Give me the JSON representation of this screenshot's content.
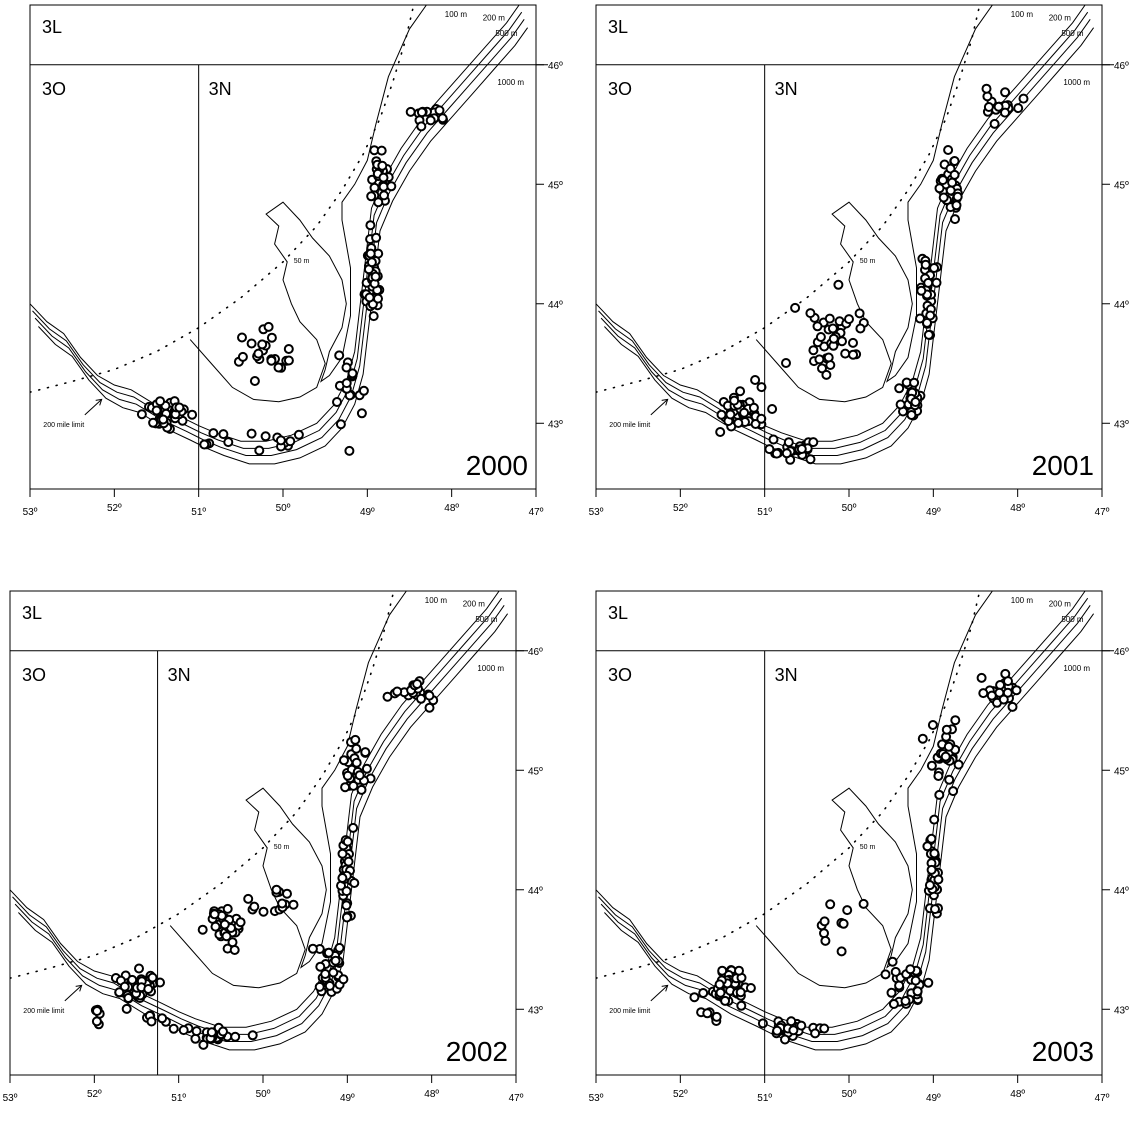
{
  "chart_data": [
    {
      "type": "scatter",
      "year_label": "2000",
      "divisions": {
        "top": "3L",
        "left": "3O",
        "right": "3N"
      },
      "depth_labels": [
        "100 m",
        "200 m",
        "500 m",
        "1000 m",
        "50 m"
      ],
      "limit_label": "200 mile limit",
      "x_ticks": [
        "53º",
        "52º",
        "51º",
        "50º",
        "49º",
        "48º",
        "47º"
      ],
      "y_ticks": [
        "46º",
        "45º",
        "44º",
        "43º"
      ],
      "xlim": [
        -53,
        -47
      ],
      "ylim": [
        42.45,
        46.5
      ],
      "dividers": {
        "lat": 46,
        "lon": -51
      },
      "clusters": [
        {
          "cx": -51.4,
          "cy": 43.08,
          "sx": 0.22,
          "sy": 0.12,
          "n": 40
        },
        {
          "cx": -50.8,
          "cy": 42.85,
          "sx": 0.2,
          "sy": 0.06,
          "n": 6
        },
        {
          "cx": -50.1,
          "cy": 42.85,
          "sx": 0.25,
          "sy": 0.08,
          "n": 10
        },
        {
          "cx": -50.2,
          "cy": 43.6,
          "sx": 0.35,
          "sy": 0.2,
          "n": 22
        },
        {
          "cx": -49.2,
          "cy": 43.3,
          "sx": 0.18,
          "sy": 0.3,
          "n": 18
        },
        {
          "cx": -48.95,
          "cy": 44.2,
          "sx": 0.08,
          "sy": 0.4,
          "n": 35
        },
        {
          "cx": -48.85,
          "cy": 45.05,
          "sx": 0.12,
          "sy": 0.2,
          "n": 25
        },
        {
          "cx": -48.3,
          "cy": 45.6,
          "sx": 0.2,
          "sy": 0.1,
          "n": 14
        }
      ]
    },
    {
      "type": "scatter",
      "year_label": "2001",
      "divisions": {
        "top": "3L",
        "left": "3O",
        "right": "3N"
      },
      "depth_labels": [
        "100 m",
        "200 m",
        "500 m",
        "1000 m",
        "50 m"
      ],
      "limit_label": "200 mile limit",
      "x_ticks": [
        "53º",
        "52º",
        "51º",
        "50º",
        "49º",
        "48º",
        "47º"
      ],
      "y_ticks": [
        "46º",
        "45º",
        "44º",
        "43º"
      ],
      "xlim": [
        -53,
        -47
      ],
      "ylim": [
        42.45,
        46.5
      ],
      "dividers": {
        "lat": 46,
        "lon": -51
      },
      "clusters": [
        {
          "cx": -51.3,
          "cy": 43.1,
          "sx": 0.25,
          "sy": 0.15,
          "n": 50
        },
        {
          "cx": -50.6,
          "cy": 42.78,
          "sx": 0.3,
          "sy": 0.07,
          "n": 22
        },
        {
          "cx": -50.2,
          "cy": 43.75,
          "sx": 0.4,
          "sy": 0.25,
          "n": 40
        },
        {
          "cx": -49.25,
          "cy": 43.2,
          "sx": 0.12,
          "sy": 0.2,
          "n": 28
        },
        {
          "cx": -49.05,
          "cy": 44.1,
          "sx": 0.08,
          "sy": 0.35,
          "n": 30
        },
        {
          "cx": -48.8,
          "cy": 45.0,
          "sx": 0.14,
          "sy": 0.25,
          "n": 30
        },
        {
          "cx": -48.2,
          "cy": 45.65,
          "sx": 0.2,
          "sy": 0.1,
          "n": 22
        }
      ]
    },
    {
      "type": "scatter",
      "year_label": "2002",
      "divisions": {
        "top": "3L",
        "left": "3O",
        "right": "3N"
      },
      "depth_labels": [
        "100 m",
        "200 m",
        "500 m",
        "1000 m",
        "50 m"
      ],
      "limit_label": "200 mile limit",
      "x_ticks": [
        "53º",
        "52º",
        "51º",
        "50º",
        "49º",
        "48º",
        "47º"
      ],
      "y_ticks": [
        "46º",
        "45º",
        "44º",
        "43º"
      ],
      "xlim": [
        -53,
        -47
      ],
      "ylim": [
        42.45,
        46.5
      ],
      "dividers": {
        "lat": 46,
        "lon": -51.25
      },
      "clusters": [
        {
          "cx": -51.5,
          "cy": 43.2,
          "sx": 0.25,
          "sy": 0.12,
          "n": 45
        },
        {
          "cx": -51.95,
          "cy": 42.95,
          "sx": 0.03,
          "sy": 0.1,
          "n": 6
        },
        {
          "cx": -51.3,
          "cy": 42.92,
          "sx": 0.1,
          "sy": 0.05,
          "n": 8
        },
        {
          "cx": -50.6,
          "cy": 42.78,
          "sx": 0.3,
          "sy": 0.06,
          "n": 30
        },
        {
          "cx": -50.45,
          "cy": 43.7,
          "sx": 0.18,
          "sy": 0.15,
          "n": 40
        },
        {
          "cx": -49.9,
          "cy": 43.9,
          "sx": 0.3,
          "sy": 0.12,
          "n": 14
        },
        {
          "cx": -49.2,
          "cy": 43.3,
          "sx": 0.15,
          "sy": 0.25,
          "n": 30
        },
        {
          "cx": -49.0,
          "cy": 44.1,
          "sx": 0.08,
          "sy": 0.35,
          "n": 35
        },
        {
          "cx": -48.9,
          "cy": 45.05,
          "sx": 0.12,
          "sy": 0.22,
          "n": 28
        },
        {
          "cx": -48.2,
          "cy": 45.65,
          "sx": 0.2,
          "sy": 0.1,
          "n": 20
        }
      ]
    },
    {
      "type": "scatter",
      "year_label": "2003",
      "divisions": {
        "top": "3L",
        "left": "3O",
        "right": "3N"
      },
      "depth_labels": [
        "100 m",
        "200 m",
        "500 m",
        "1000 m",
        "50 m"
      ],
      "limit_label": "200 mile limit",
      "x_ticks": [
        "53º",
        "52º",
        "51º",
        "50º",
        "49º",
        "48º",
        "47º"
      ],
      "y_ticks": [
        "46º",
        "45º",
        "44º",
        "43º"
      ],
      "xlim": [
        -53,
        -47
      ],
      "ylim": [
        42.45,
        46.5
      ],
      "dividers": {
        "lat": 46,
        "lon": -51
      },
      "clusters": [
        {
          "cx": -51.45,
          "cy": 43.2,
          "sx": 0.22,
          "sy": 0.12,
          "n": 60
        },
        {
          "cx": -50.7,
          "cy": 42.85,
          "sx": 0.3,
          "sy": 0.08,
          "n": 25
        },
        {
          "cx": -51.6,
          "cy": 42.95,
          "sx": 0.15,
          "sy": 0.1,
          "n": 6
        },
        {
          "cx": -50.2,
          "cy": 43.7,
          "sx": 0.3,
          "sy": 0.3,
          "n": 10
        },
        {
          "cx": -49.3,
          "cy": 43.2,
          "sx": 0.2,
          "sy": 0.2,
          "n": 30
        },
        {
          "cx": -49.0,
          "cy": 44.1,
          "sx": 0.08,
          "sy": 0.4,
          "n": 30
        },
        {
          "cx": -48.85,
          "cy": 45.1,
          "sx": 0.13,
          "sy": 0.25,
          "n": 30
        },
        {
          "cx": -48.2,
          "cy": 45.65,
          "sx": 0.2,
          "sy": 0.12,
          "n": 22
        }
      ]
    }
  ]
}
